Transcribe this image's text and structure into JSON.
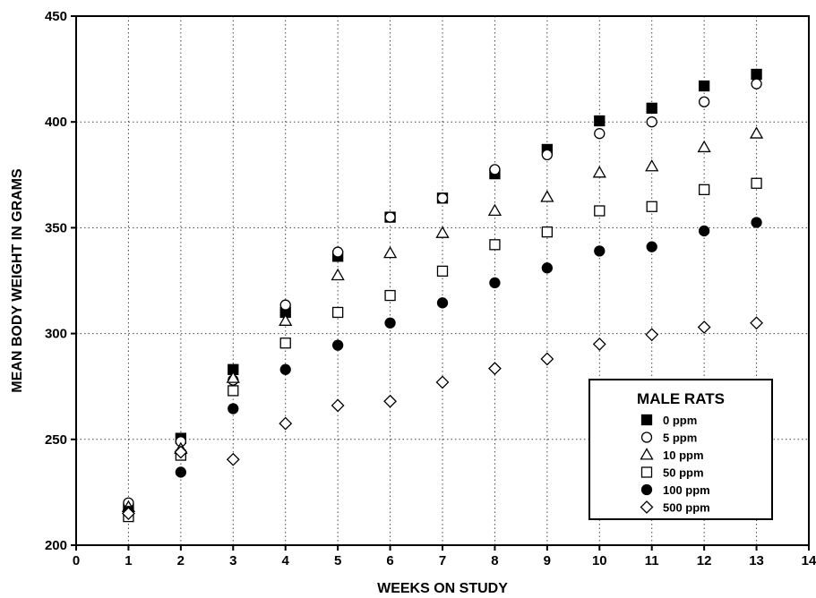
{
  "chart_data": {
    "type": "scatter",
    "title": "",
    "xlabel": "WEEKS ON STUDY",
    "ylabel": "MEAN BODY WEIGHT IN GRAMS",
    "xlim": [
      0,
      14
    ],
    "ylim": [
      200,
      450
    ],
    "xticks": [
      "0",
      "1",
      "2",
      "3",
      "4",
      "5",
      "6",
      "7",
      "8",
      "9",
      "10",
      "11",
      "12",
      "13",
      "14"
    ],
    "yticks": [
      "200",
      "250",
      "300",
      "350",
      "400",
      "450"
    ],
    "grid": "dotted",
    "legend": {
      "title": "MALE RATS",
      "placement": "bottom-right"
    },
    "series": [
      {
        "name": "0 ppm",
        "marker": "filled-square",
        "points": [
          [
            1,
            217
          ],
          [
            2,
            250.5
          ],
          [
            3,
            283
          ],
          [
            4,
            310
          ],
          [
            5,
            336.5
          ],
          [
            6,
            355
          ],
          [
            7,
            364
          ],
          [
            8,
            375.5
          ],
          [
            9,
            387
          ],
          [
            10,
            400.5
          ],
          [
            11,
            406.5
          ],
          [
            12,
            417
          ],
          [
            13,
            422.5
          ]
        ]
      },
      {
        "name": "5 ppm",
        "marker": "open-circle",
        "points": [
          [
            1,
            220
          ],
          [
            2,
            249
          ],
          [
            3,
            278
          ],
          [
            4,
            313.5
          ],
          [
            5,
            338.5
          ],
          [
            6,
            355
          ],
          [
            7,
            364
          ],
          [
            8,
            377.5
          ],
          [
            9,
            384.5
          ],
          [
            10,
            394.5
          ],
          [
            11,
            400
          ],
          [
            12,
            409.5
          ],
          [
            13,
            418
          ]
        ]
      },
      {
        "name": "10 ppm",
        "marker": "open-triangle",
        "points": [
          [
            1,
            218
          ],
          [
            2,
            245.5
          ],
          [
            3,
            279
          ],
          [
            4,
            306
          ],
          [
            5,
            327.5
          ],
          [
            6,
            338
          ],
          [
            7,
            347.5
          ],
          [
            8,
            358
          ],
          [
            9,
            364.5
          ],
          [
            10,
            376
          ],
          [
            11,
            379
          ],
          [
            12,
            388
          ],
          [
            13,
            394.5
          ]
        ]
      },
      {
        "name": "50 ppm",
        "marker": "open-square",
        "points": [
          [
            1,
            213.5
          ],
          [
            2,
            242.5
          ],
          [
            3,
            273
          ],
          [
            4,
            295.5
          ],
          [
            5,
            310
          ],
          [
            6,
            318
          ],
          [
            7,
            329.5
          ],
          [
            8,
            342
          ],
          [
            9,
            348
          ],
          [
            10,
            358
          ],
          [
            11,
            360
          ],
          [
            12,
            368
          ],
          [
            13,
            371
          ]
        ]
      },
      {
        "name": "100 ppm",
        "marker": "filled-circle",
        "points": [
          [
            1,
            216
          ],
          [
            2,
            234.5
          ],
          [
            3,
            264.5
          ],
          [
            4,
            283
          ],
          [
            5,
            294.5
          ],
          [
            6,
            305
          ],
          [
            7,
            314.5
          ],
          [
            8,
            324
          ],
          [
            9,
            331
          ],
          [
            10,
            339
          ],
          [
            11,
            341
          ],
          [
            12,
            348.5
          ],
          [
            13,
            352.5
          ]
        ]
      },
      {
        "name": "500 ppm",
        "marker": "open-diamond",
        "points": [
          [
            1,
            215
          ],
          [
            2,
            244
          ],
          [
            3,
            240.5
          ],
          [
            4,
            257.5
          ],
          [
            5,
            266
          ],
          [
            6,
            268
          ],
          [
            7,
            277
          ],
          [
            8,
            283.5
          ],
          [
            9,
            288
          ],
          [
            10,
            295
          ],
          [
            11,
            299.5
          ],
          [
            12,
            303
          ],
          [
            13,
            305
          ]
        ]
      }
    ]
  }
}
